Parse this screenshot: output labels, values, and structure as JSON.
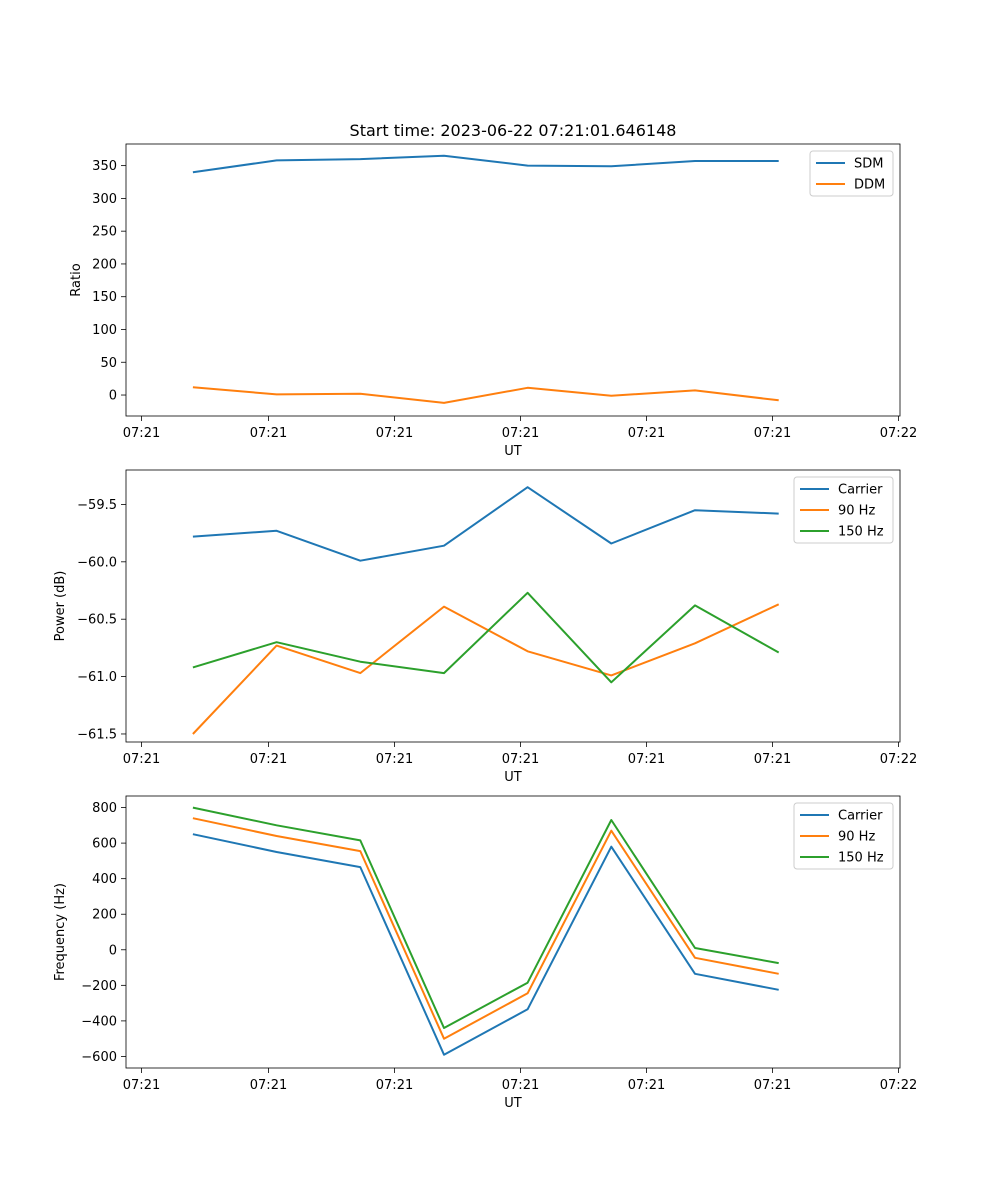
{
  "figure": {
    "suptitle": "Start time: 2023-06-22 07:21:01.646148"
  },
  "chart_data": [
    {
      "type": "line",
      "title": "Start time: 2023-06-22 07:21:01.646148",
      "xlabel": "UT",
      "ylabel": "Ratio",
      "x_tick_labels": [
        "07:21",
        "07:21",
        "07:21",
        "07:21",
        "07:21",
        "07:21",
        "07:22"
      ],
      "x": [
        1,
        2,
        3,
        4,
        5,
        6,
        7,
        8
      ],
      "xlim": [
        0.2,
        9.45
      ],
      "ylim": [
        -32,
        383
      ],
      "y_ticks": [
        0,
        50,
        100,
        150,
        200,
        250,
        300,
        350
      ],
      "y_tick_labels": [
        "0",
        "50",
        "100",
        "150",
        "200",
        "250",
        "300",
        "350"
      ],
      "legend": "top-right",
      "series": [
        {
          "name": "SDM",
          "color": "#1f77b4",
          "values": [
            340,
            358,
            360,
            365,
            350,
            349,
            357,
            357
          ]
        },
        {
          "name": "DDM",
          "color": "#ff7f0e",
          "values": [
            12,
            1,
            2,
            -12,
            11,
            -1,
            7,
            -8
          ]
        }
      ]
    },
    {
      "type": "line",
      "title": "",
      "xlabel": "UT",
      "ylabel": "Power (dB)",
      "x_tick_labels": [
        "07:21",
        "07:21",
        "07:21",
        "07:21",
        "07:21",
        "07:21",
        "07:22"
      ],
      "x": [
        1,
        2,
        3,
        4,
        5,
        6,
        7,
        8
      ],
      "xlim": [
        0.2,
        9.45
      ],
      "ylim": [
        -61.57,
        -59.2
      ],
      "y_ticks": [
        -61.5,
        -61.0,
        -60.5,
        -60.0,
        -59.5
      ],
      "y_tick_labels": [
        "−61.5",
        "−61.0",
        "−60.5",
        "−60.0",
        "−59.5"
      ],
      "legend": "top-right",
      "series": [
        {
          "name": "Carrier",
          "color": "#1f77b4",
          "values": [
            -59.78,
            -59.73,
            -59.99,
            -59.86,
            -59.35,
            -59.84,
            -59.55,
            -59.58
          ]
        },
        {
          "name": "90 Hz",
          "color": "#ff7f0e",
          "values": [
            -61.5,
            -60.73,
            -60.97,
            -60.39,
            -60.78,
            -60.99,
            -60.71,
            -60.37
          ]
        },
        {
          "name": "150 Hz",
          "color": "#2ca02c",
          "values": [
            -60.92,
            -60.7,
            -60.87,
            -60.97,
            -60.27,
            -61.05,
            -60.38,
            -60.79
          ]
        }
      ]
    },
    {
      "type": "line",
      "title": "",
      "xlabel": "UT",
      "ylabel": "Frequency (Hz)",
      "x_tick_labels": [
        "07:21",
        "07:21",
        "07:21",
        "07:21",
        "07:21",
        "07:21",
        "07:22"
      ],
      "x": [
        1,
        2,
        3,
        4,
        5,
        6,
        7,
        8
      ],
      "xlim": [
        0.2,
        9.45
      ],
      "ylim": [
        -665,
        865
      ],
      "y_ticks": [
        -600,
        -400,
        -200,
        0,
        200,
        400,
        600,
        800
      ],
      "y_tick_labels": [
        "−600",
        "−400",
        "−200",
        "0",
        "200",
        "400",
        "600",
        "800"
      ],
      "legend": "top-right",
      "series": [
        {
          "name": "Carrier",
          "color": "#1f77b4",
          "values": [
            650,
            550,
            465,
            -590,
            -335,
            580,
            -135,
            -225
          ]
        },
        {
          "name": "90 Hz",
          "color": "#ff7f0e",
          "values": [
            740,
            640,
            555,
            -500,
            -245,
            670,
            -45,
            -135
          ]
        },
        {
          "name": "150 Hz",
          "color": "#2ca02c",
          "values": [
            800,
            700,
            615,
            -440,
            -185,
            730,
            10,
            -75
          ]
        }
      ]
    }
  ]
}
